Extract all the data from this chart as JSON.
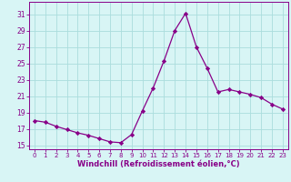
{
  "x": [
    0,
    1,
    2,
    3,
    4,
    5,
    6,
    7,
    8,
    9,
    10,
    11,
    12,
    13,
    14,
    15,
    16,
    17,
    18,
    19,
    20,
    21,
    22,
    23
  ],
  "y": [
    18.0,
    17.8,
    17.3,
    16.9,
    16.5,
    16.2,
    15.8,
    15.4,
    15.3,
    16.3,
    19.2,
    22.0,
    25.3,
    29.0,
    31.1,
    27.0,
    24.4,
    21.5,
    21.8,
    21.5,
    21.2,
    20.8,
    20.0,
    19.4
  ],
  "line_color": "#880088",
  "marker": "D",
  "marker_size": 2.2,
  "bg_color": "#d8f5f5",
  "grid_color": "#aadddd",
  "xlabel": "Windchill (Refroidissement éolien,°C)",
  "xlabel_color": "#880088",
  "ylabel_ticks": [
    15,
    17,
    19,
    21,
    23,
    25,
    27,
    29,
    31
  ],
  "ylim": [
    14.5,
    32.5
  ],
  "xlim": [
    -0.5,
    23.5
  ],
  "tick_color": "#880088",
  "axis_color": "#880088",
  "xtick_fontsize": 5.0,
  "ytick_fontsize": 5.5,
  "xlabel_fontsize": 6.0
}
